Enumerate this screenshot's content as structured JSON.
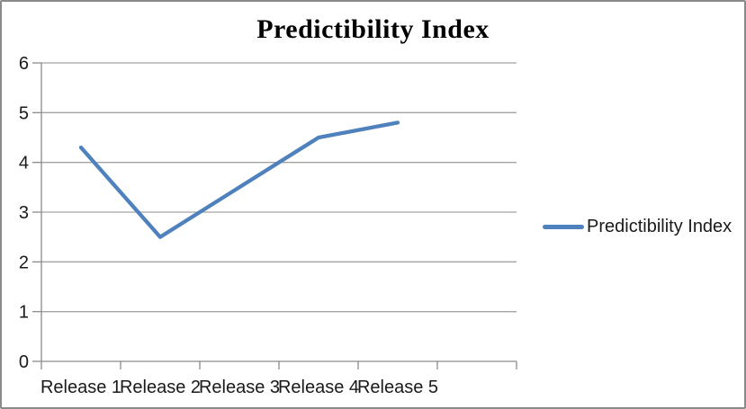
{
  "chart_data": {
    "type": "line",
    "title": "Predictibility Index",
    "categories": [
      "Release 1",
      "Release 2",
      "Release 3",
      "Release 4",
      "Release 5"
    ],
    "series": [
      {
        "name": "Predictibility Index",
        "values": [
          4.3,
          2.5,
          3.5,
          4.5,
          4.8
        ]
      }
    ],
    "xlabel": "",
    "ylabel": "",
    "ylim": [
      0,
      6
    ],
    "yticks": [
      0,
      1,
      2,
      3,
      4,
      5,
      6
    ],
    "grid": "horizontal",
    "legend_position": "right",
    "colors": {
      "series": "#4F81BD",
      "gridline": "#A3A3A3",
      "axis": "#8C8C8C",
      "tick": "#8C8C8C",
      "text": "#1A1A1A",
      "frame_border": "#8A8A8A"
    }
  }
}
